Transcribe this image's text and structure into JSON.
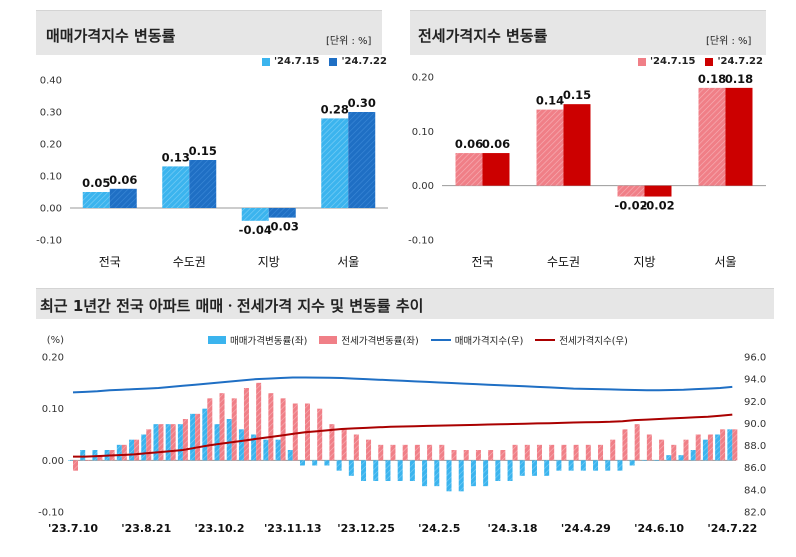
{
  "colors": {
    "sale_a": "#3bb4ee",
    "sale_b": "#1f6fc4",
    "jeonse_a": "#f07f87",
    "jeonse_b": "#cc0000",
    "sale_index_line": "#1f6fc4",
    "jeonse_index_line": "#aa0000"
  },
  "panels": {
    "sale": {
      "title": "매매가격지수 변동률",
      "unit": "[단위 : %]"
    },
    "jeonse": {
      "title": "전세가격지수 변동률",
      "unit": "[단위 : %]"
    },
    "trend": {
      "title": "최근 1년간 전국 아파트 매매ㆍ전세가격 지수 및 변동률 추이"
    }
  },
  "chart_data": [
    {
      "type": "bar",
      "title": "매매가격지수 변동률",
      "unit": "[단위 : %]",
      "categories": [
        "전국",
        "수도권",
        "지방",
        "서울"
      ],
      "series": [
        {
          "name": "'24.7.15",
          "values": [
            0.05,
            0.13,
            -0.04,
            0.28
          ]
        },
        {
          "name": "'24.7.22",
          "values": [
            0.06,
            0.15,
            -0.03,
            0.3
          ]
        }
      ],
      "value_labels": [
        [
          "0.05",
          "0.13",
          "-0.04",
          "0.28"
        ],
        [
          "0.06",
          "0.15",
          "-0.03",
          "0.30"
        ]
      ],
      "ylim": [
        -0.1,
        0.4
      ],
      "yticks": [
        "-0.10",
        "0.00",
        "0.10",
        "0.20",
        "0.30",
        "0.40"
      ],
      "legend": "top-right",
      "grid": false
    },
    {
      "type": "bar",
      "title": "전세가격지수 변동률",
      "unit": "[단위 : %]",
      "categories": [
        "전국",
        "수도권",
        "지방",
        "서울"
      ],
      "series": [
        {
          "name": "'24.7.15",
          "values": [
            0.06,
            0.14,
            -0.02,
            0.18
          ]
        },
        {
          "name": "'24.7.22",
          "values": [
            0.06,
            0.15,
            -0.02,
            0.18
          ]
        }
      ],
      "value_labels": [
        [
          "0.06",
          "0.14",
          "-0.02",
          "0.18"
        ],
        [
          "0.06",
          "0.15",
          "-0.02",
          "0.18"
        ]
      ],
      "ylim": [
        -0.1,
        0.2
      ],
      "yticks": [
        "-0.10",
        "0.00",
        "0.10",
        "0.20"
      ],
      "legend": "top-right",
      "grid": false
    },
    {
      "type": "bar",
      "title": "최근 1년간 전국 아파트 매매ㆍ전세가격 지수 및 변동률 추이",
      "left_axis_label": "(%)",
      "ylim_left": [
        -0.1,
        0.2
      ],
      "yticks_left": [
        "-0.10",
        "0.00",
        "0.10",
        "0.20"
      ],
      "ylim_right": [
        82.0,
        96.0
      ],
      "yticks_right": [
        "82.0",
        "84.0",
        "86.0",
        "88.0",
        "90.0",
        "92.0",
        "94.0",
        "96.0"
      ],
      "x_tick_labels": [
        "'23.7.10",
        "'23.8.21",
        "'23.10.2",
        "'23.11.13",
        "'23.12.25",
        "'24.2.5",
        "'24.3.18",
        "'24.4.29",
        "'24.6.10",
        "'24.7.22"
      ],
      "x_tick_positions": [
        0,
        6,
        12,
        18,
        24,
        30,
        36,
        42,
        48,
        54
      ],
      "legend": "top",
      "grid": false,
      "series": [
        {
          "name": "매매가격변동률(좌)",
          "type": "bar",
          "axis": "left",
          "values": [
            0.0,
            0.02,
            0.02,
            0.02,
            0.03,
            0.04,
            0.05,
            0.07,
            0.07,
            0.07,
            0.09,
            0.1,
            0.07,
            0.08,
            0.06,
            0.05,
            0.04,
            0.04,
            0.02,
            -0.01,
            -0.01,
            -0.01,
            -0.02,
            -0.03,
            -0.04,
            -0.04,
            -0.04,
            -0.04,
            -0.04,
            -0.05,
            -0.05,
            -0.06,
            -0.06,
            -0.05,
            -0.05,
            -0.04,
            -0.04,
            -0.03,
            -0.03,
            -0.03,
            -0.02,
            -0.02,
            -0.02,
            -0.02,
            -0.02,
            -0.02,
            -0.01,
            0.0,
            0.0,
            0.01,
            0.01,
            0.02,
            0.04,
            0.05,
            0.06
          ]
        },
        {
          "name": "전세가격변동률(좌)",
          "type": "bar",
          "axis": "left",
          "values": [
            -0.02,
            0.0,
            0.01,
            0.02,
            0.03,
            0.04,
            0.06,
            0.07,
            0.07,
            0.08,
            0.09,
            0.12,
            0.13,
            0.12,
            0.14,
            0.15,
            0.13,
            0.12,
            0.11,
            0.11,
            0.1,
            0.07,
            0.06,
            0.05,
            0.04,
            0.03,
            0.03,
            0.03,
            0.03,
            0.03,
            0.03,
            0.02,
            0.02,
            0.02,
            0.02,
            0.02,
            0.03,
            0.03,
            0.03,
            0.03,
            0.03,
            0.03,
            0.03,
            0.03,
            0.04,
            0.06,
            0.07,
            0.05,
            0.04,
            0.03,
            0.04,
            0.05,
            0.05,
            0.06,
            0.06
          ]
        },
        {
          "name": "매매가격지수(우)",
          "type": "line",
          "axis": "right",
          "values": [
            92.8,
            92.85,
            92.9,
            93.0,
            93.05,
            93.1,
            93.15,
            93.2,
            93.3,
            93.4,
            93.5,
            93.6,
            93.7,
            93.8,
            93.9,
            94.0,
            94.05,
            94.1,
            94.15,
            94.15,
            94.14,
            94.12,
            94.1,
            94.05,
            94.0,
            93.95,
            93.9,
            93.85,
            93.8,
            93.75,
            93.7,
            93.65,
            93.6,
            93.55,
            93.5,
            93.45,
            93.4,
            93.35,
            93.3,
            93.25,
            93.2,
            93.15,
            93.12,
            93.1,
            93.07,
            93.05,
            93.02,
            93.0,
            93.0,
            93.02,
            93.05,
            93.1,
            93.15,
            93.2,
            93.3
          ]
        },
        {
          "name": "전세가격지수(우)",
          "type": "line",
          "axis": "right",
          "values": [
            87.0,
            87.0,
            87.05,
            87.1,
            87.15,
            87.2,
            87.3,
            87.4,
            87.5,
            87.6,
            87.8,
            88.0,
            88.15,
            88.3,
            88.45,
            88.6,
            88.75,
            88.9,
            89.05,
            89.2,
            89.3,
            89.4,
            89.5,
            89.55,
            89.6,
            89.65,
            89.7,
            89.72,
            89.75,
            89.78,
            89.8,
            89.82,
            89.85,
            89.87,
            89.9,
            89.92,
            89.95,
            89.97,
            90.0,
            90.02,
            90.05,
            90.08,
            90.1,
            90.12,
            90.15,
            90.2,
            90.3,
            90.35,
            90.4,
            90.45,
            90.5,
            90.55,
            90.6,
            90.7,
            90.8
          ]
        }
      ]
    }
  ]
}
